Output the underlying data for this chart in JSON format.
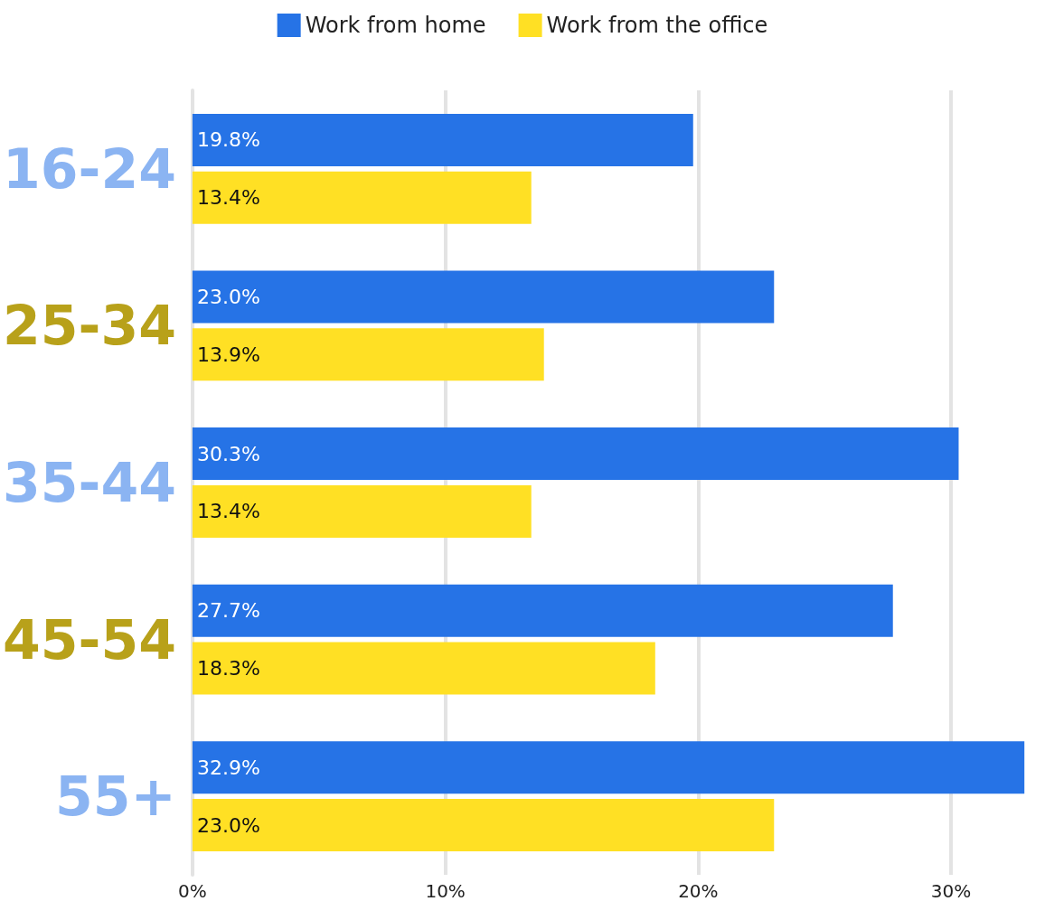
{
  "chart_data": {
    "type": "bar",
    "orientation": "horizontal",
    "categories": [
      "16-24",
      "25-34",
      "35-44",
      "45-54",
      "55+"
    ],
    "series": [
      {
        "name": "Work from home",
        "color": "#2673e6",
        "values": [
          19.8,
          23.0,
          30.3,
          27.7,
          32.9
        ],
        "value_labels": [
          "19.8%",
          "23.0%",
          "30.3%",
          "27.7%",
          "32.9%"
        ]
      },
      {
        "name": "Work from the office",
        "color": "#ffe024",
        "values": [
          13.4,
          13.9,
          13.4,
          18.3,
          23.0
        ],
        "value_labels": [
          "13.4%",
          "13.9%",
          "13.4%",
          "18.3%",
          "23.0%"
        ]
      }
    ],
    "xlim": [
      0,
      33
    ],
    "xticks": [
      {
        "value": 0,
        "label": "0%"
      },
      {
        "value": 10,
        "label": "10%"
      },
      {
        "value": 20,
        "label": "20%"
      },
      {
        "value": 30,
        "label": "30%"
      }
    ],
    "grid": "x",
    "legend": "top"
  }
}
